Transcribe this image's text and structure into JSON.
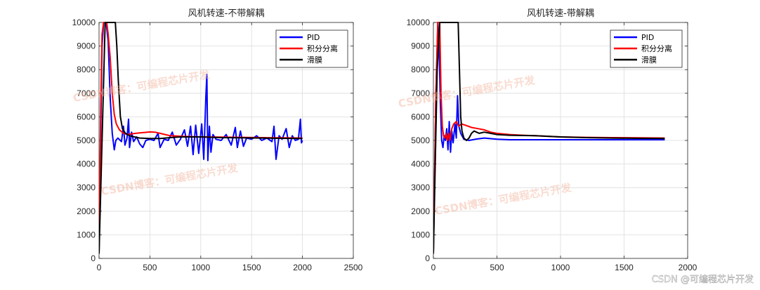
{
  "chart_data": [
    {
      "type": "line",
      "title": "风机转速-不带解耦",
      "xlim": [
        0,
        2500
      ],
      "ylim": [
        0,
        10000
      ],
      "xticks": [
        "0",
        "500",
        "1000",
        "1500",
        "2000",
        "2500"
      ],
      "yticks": [
        "0",
        "1000",
        "2000",
        "3000",
        "4000",
        "5000",
        "6000",
        "7000",
        "8000",
        "9000",
        "10000"
      ],
      "grid": true,
      "legend_position": "top-right",
      "series": [
        {
          "name": "PID",
          "color": "#0000ff",
          "points": [
            [
              0,
              200
            ],
            [
              15,
              5000
            ],
            [
              30,
              9000
            ],
            [
              45,
              10000
            ],
            [
              70,
              10000
            ],
            [
              90,
              9200
            ],
            [
              110,
              6800
            ],
            [
              130,
              5300
            ],
            [
              150,
              4600
            ],
            [
              165,
              5000
            ],
            [
              185,
              5100
            ],
            [
              220,
              4950
            ],
            [
              240,
              5600
            ],
            [
              255,
              4800
            ],
            [
              275,
              5100
            ],
            [
              290,
              5900
            ],
            [
              300,
              4700
            ],
            [
              320,
              5350
            ],
            [
              340,
              4950
            ],
            [
              370,
              5150
            ],
            [
              400,
              4850
            ],
            [
              430,
              4700
            ],
            [
              460,
              5000
            ],
            [
              500,
              5050
            ],
            [
              540,
              5000
            ],
            [
              580,
              5300
            ],
            [
              600,
              4700
            ],
            [
              640,
              5050
            ],
            [
              680,
              5000
            ],
            [
              720,
              5350
            ],
            [
              760,
              4800
            ],
            [
              800,
              5050
            ],
            [
              840,
              5450
            ],
            [
              870,
              4750
            ],
            [
              900,
              5600
            ],
            [
              925,
              4400
            ],
            [
              950,
              5650
            ],
            [
              980,
              4450
            ],
            [
              1010,
              5700
            ],
            [
              1030,
              4200
            ],
            [
              1050,
              6800
            ],
            [
              1060,
              7800
            ],
            [
              1070,
              4150
            ],
            [
              1085,
              5600
            ],
            [
              1100,
              4500
            ],
            [
              1120,
              5250
            ],
            [
              1150,
              5050
            ],
            [
              1200,
              5000
            ],
            [
              1250,
              5250
            ],
            [
              1300,
              4800
            ],
            [
              1340,
              5550
            ],
            [
              1360,
              4700
            ],
            [
              1390,
              5400
            ],
            [
              1420,
              4750
            ],
            [
              1450,
              5100
            ],
            [
              1500,
              5050
            ],
            [
              1550,
              5200
            ],
            [
              1600,
              5000
            ],
            [
              1650,
              5100
            ],
            [
              1700,
              4950
            ],
            [
              1720,
              5600
            ],
            [
              1740,
              4200
            ],
            [
              1770,
              5200
            ],
            [
              1800,
              5050
            ],
            [
              1840,
              5500
            ],
            [
              1870,
              4700
            ],
            [
              1900,
              5200
            ],
            [
              1930,
              5000
            ],
            [
              1960,
              5050
            ],
            [
              1980,
              5900
            ],
            [
              1990,
              4900
            ],
            [
              2000,
              5000
            ]
          ]
        },
        {
          "name": "积分分离",
          "color": "#ff0000",
          "points": [
            [
              0,
              200
            ],
            [
              15,
              6000
            ],
            [
              30,
              9500
            ],
            [
              45,
              10000
            ],
            [
              60,
              10000
            ],
            [
              75,
              10000
            ],
            [
              90,
              9500
            ],
            [
              110,
              8500
            ],
            [
              130,
              7000
            ],
            [
              150,
              6100
            ],
            [
              170,
              5700
            ],
            [
              200,
              5450
            ],
            [
              240,
              5300
            ],
            [
              280,
              5250
            ],
            [
              320,
              5280
            ],
            [
              360,
              5300
            ],
            [
              400,
              5320
            ],
            [
              450,
              5340
            ],
            [
              500,
              5360
            ],
            [
              550,
              5350
            ],
            [
              600,
              5300
            ],
            [
              650,
              5250
            ],
            [
              700,
              5200
            ],
            [
              800,
              5180
            ],
            [
              900,
              5160
            ],
            [
              1000,
              5150
            ],
            [
              1200,
              5140
            ],
            [
              1400,
              5130
            ],
            [
              1600,
              5120
            ],
            [
              1800,
              5110
            ],
            [
              2000,
              5100
            ]
          ]
        },
        {
          "name": "滑膜",
          "color": "#000000",
          "points": [
            [
              0,
              200
            ],
            [
              30,
              5000
            ],
            [
              60,
              10000
            ],
            [
              100,
              10000
            ],
            [
              140,
              10000
            ],
            [
              160,
              10000
            ],
            [
              175,
              9000
            ],
            [
              190,
              7500
            ],
            [
              210,
              6000
            ],
            [
              230,
              5500
            ],
            [
              260,
              5300
            ],
            [
              300,
              5200
            ],
            [
              350,
              5150
            ],
            [
              400,
              5100
            ],
            [
              500,
              5080
            ],
            [
              600,
              5080
            ],
            [
              700,
              5120
            ],
            [
              800,
              5150
            ],
            [
              1000,
              5150
            ],
            [
              1200,
              5120
            ],
            [
              1400,
              5110
            ],
            [
              1600,
              5100
            ],
            [
              1800,
              5090
            ],
            [
              2000,
              5080
            ]
          ]
        }
      ]
    },
    {
      "type": "line",
      "title": "风机转速-带解耦",
      "xlim": [
        0,
        2000
      ],
      "ylim": [
        0,
        10000
      ],
      "xticks": [
        "0",
        "500",
        "1000",
        "1500",
        "2000"
      ],
      "yticks": [
        "0",
        "1000",
        "2000",
        "3000",
        "4000",
        "5000",
        "6000",
        "7000",
        "8000",
        "9000",
        "10000"
      ],
      "grid": true,
      "legend_position": "top-right",
      "series": [
        {
          "name": "PID",
          "color": "#0000ff",
          "points": [
            [
              0,
              200
            ],
            [
              20,
              7000
            ],
            [
              35,
              10000
            ],
            [
              45,
              9000
            ],
            [
              55,
              6500
            ],
            [
              65,
              5000
            ],
            [
              75,
              4700
            ],
            [
              85,
              5200
            ],
            [
              95,
              5000
            ],
            [
              105,
              5500
            ],
            [
              115,
              4600
            ],
            [
              125,
              5800
            ],
            [
              135,
              4500
            ],
            [
              145,
              5400
            ],
            [
              155,
              4900
            ],
            [
              170,
              5700
            ],
            [
              180,
              5100
            ],
            [
              190,
              6900
            ],
            [
              200,
              5600
            ],
            [
              215,
              5300
            ],
            [
              240,
              5050
            ],
            [
              280,
              5000
            ],
            [
              330,
              5050
            ],
            [
              400,
              5100
            ],
            [
              500,
              5050
            ],
            [
              600,
              5030
            ],
            [
              800,
              5030
            ],
            [
              1000,
              5030
            ],
            [
              1200,
              5030
            ],
            [
              1400,
              5030
            ],
            [
              1600,
              5030
            ],
            [
              1820,
              5030
            ]
          ]
        },
        {
          "name": "积分分离",
          "color": "#ff0000",
          "points": [
            [
              0,
              200
            ],
            [
              20,
              7000
            ],
            [
              35,
              10000
            ],
            [
              50,
              10000
            ],
            [
              60,
              7000
            ],
            [
              70,
              5600
            ],
            [
              80,
              5200
            ],
            [
              90,
              5100
            ],
            [
              100,
              5300
            ],
            [
              110,
              5000
            ],
            [
              120,
              5300
            ],
            [
              130,
              5000
            ],
            [
              145,
              5500
            ],
            [
              160,
              5700
            ],
            [
              180,
              5800
            ],
            [
              200,
              5600
            ],
            [
              220,
              5700
            ],
            [
              250,
              5650
            ],
            [
              300,
              5550
            ],
            [
              350,
              5500
            ],
            [
              400,
              5450
            ],
            [
              450,
              5350
            ],
            [
              500,
              5300
            ],
            [
              600,
              5250
            ],
            [
              700,
              5220
            ],
            [
              800,
              5200
            ],
            [
              1000,
              5150
            ],
            [
              1200,
              5130
            ],
            [
              1400,
              5120
            ],
            [
              1600,
              5110
            ],
            [
              1820,
              5100
            ]
          ]
        },
        {
          "name": "滑膜",
          "color": "#000000",
          "points": [
            [
              0,
              200
            ],
            [
              30,
              8000
            ],
            [
              50,
              10000
            ],
            [
              100,
              10000
            ],
            [
              150,
              10000
            ],
            [
              195,
              10000
            ],
            [
              205,
              8000
            ],
            [
              215,
              6000
            ],
            [
              225,
              5400
            ],
            [
              240,
              5100
            ],
            [
              260,
              5000
            ],
            [
              280,
              5100
            ],
            [
              300,
              5300
            ],
            [
              320,
              5400
            ],
            [
              340,
              5350
            ],
            [
              360,
              5300
            ],
            [
              400,
              5350
            ],
            [
              450,
              5300
            ],
            [
              500,
              5250
            ],
            [
              600,
              5220
            ],
            [
              800,
              5200
            ],
            [
              1000,
              5150
            ],
            [
              1200,
              5120
            ],
            [
              1400,
              5100
            ],
            [
              1600,
              5090
            ],
            [
              1820,
              5080
            ]
          ]
        }
      ]
    }
  ],
  "watermark": "CSDN博客：可编程芯片开发",
  "credit": "CSDN @可编程芯片开发"
}
